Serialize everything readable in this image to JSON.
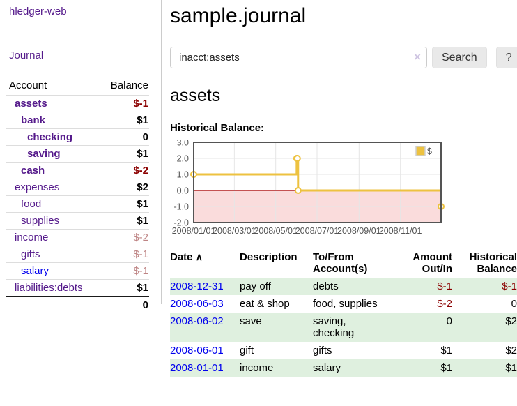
{
  "app_title": "hledger-web",
  "sidebar": {
    "journal_link": "Journal",
    "accounts_table": {
      "account_header": "Account",
      "balance_header": "Balance",
      "rows": [
        {
          "account": "assets",
          "balance": "$-1"
        },
        {
          "account": "bank",
          "balance": "$1"
        },
        {
          "account": "checking",
          "balance": "0"
        },
        {
          "account": "saving",
          "balance": "$1"
        },
        {
          "account": "cash",
          "balance": "$-2"
        },
        {
          "account": "expenses",
          "balance": "$2"
        },
        {
          "account": "food",
          "balance": "$1"
        },
        {
          "account": "supplies",
          "balance": "$1"
        },
        {
          "account": "income",
          "balance": "$-2"
        },
        {
          "account": "gifts",
          "balance": "$-1"
        },
        {
          "account": "salary",
          "balance": "$-1"
        },
        {
          "account": "liabilities:debts",
          "balance": "$1"
        }
      ],
      "total": "0"
    }
  },
  "main": {
    "title": "sample.journal",
    "search": {
      "value": "inacct:assets",
      "clear_icon": "×",
      "search_button": "Search",
      "help_button": "?"
    },
    "account_heading": "assets",
    "chart_label": "Historical Balance:"
  },
  "chart_data": {
    "type": "line",
    "step": true,
    "title": "Historical Balance",
    "series": [
      {
        "name": "$",
        "color": "#EDC240",
        "points": [
          [
            "2008-01-01",
            1
          ],
          [
            "2008-06-01",
            2
          ],
          [
            "2008-06-02",
            2
          ],
          [
            "2008-06-03",
            0
          ],
          [
            "2008-12-31",
            -1
          ]
        ]
      }
    ],
    "ylim": [
      -2.0,
      3.0
    ],
    "yticks": [
      "3.0",
      "2.0",
      "1.0",
      "0.0",
      "-1.0",
      "-2.0"
    ],
    "xticks": [
      {
        "label": "2008/01/01",
        "date": "2008-01-01"
      },
      {
        "label": "2008/03/01",
        "date": "2008-03-01"
      },
      {
        "label": "2008/05/01",
        "date": "2008-05-01"
      },
      {
        "label": "2008/07/01",
        "date": "2008-07-01"
      },
      {
        "label": "2008/09/01",
        "date": "2008-09-01"
      },
      {
        "label": "2008/11/01",
        "date": "2008-11-01"
      }
    ],
    "x_range": [
      "2008-01-01",
      "2008-12-31"
    ],
    "legend_position": "top-right",
    "grid": true,
    "colors": {
      "negative_region": "#fadcdc",
      "zero_line": "#a40000",
      "gridline": "#e6e6e6",
      "plot_border": "#545454"
    }
  },
  "transactions": {
    "headers": {
      "date": "Date",
      "sort_icon": "∧",
      "description": "Description",
      "account": "To/From Account(s)",
      "amount": "Amount Out/In",
      "balance": "Historical Balance"
    },
    "rows": [
      {
        "date": "2008-12-31",
        "description": "pay off",
        "account": "debts",
        "amount": "$-1",
        "balance": "$-1"
      },
      {
        "date": "2008-06-03",
        "description": "eat & shop",
        "account": "food, supplies",
        "amount": "$-2",
        "balance": "0"
      },
      {
        "date": "2008-06-02",
        "description": "save",
        "account": "saving,\nchecking",
        "amount": "0",
        "balance": "$2"
      },
      {
        "date": "2008-06-01",
        "description": "gift",
        "account": "gifts",
        "amount": "$1",
        "balance": "$2"
      },
      {
        "date": "2008-01-01",
        "description": "income",
        "account": "salary",
        "amount": "$1",
        "balance": "$1"
      }
    ]
  }
}
